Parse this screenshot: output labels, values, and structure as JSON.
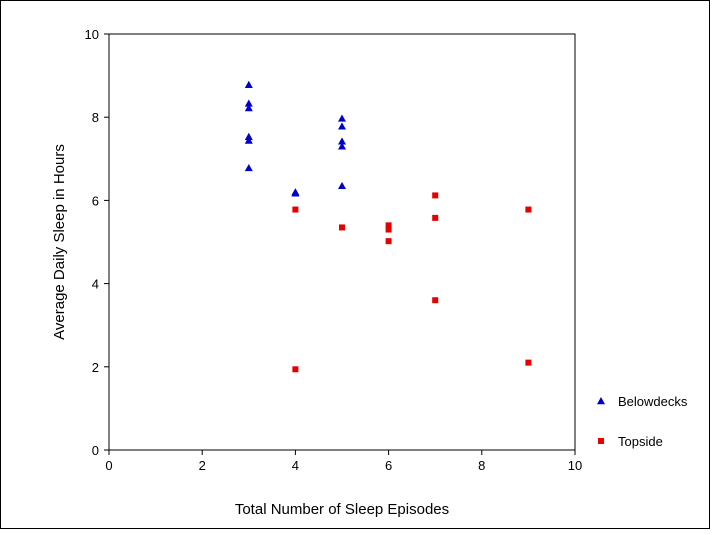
{
  "chart_data": {
    "type": "scatter",
    "title": "",
    "xlabel": "Total Number of Sleep Episodes",
    "ylabel": "Average Daily Sleep in Hours",
    "xlim": [
      0,
      10
    ],
    "ylim": [
      0,
      10
    ],
    "xticks": [
      "0",
      "2",
      "4",
      "6",
      "8",
      "10"
    ],
    "yticks": [
      "0",
      "2",
      "4",
      "6",
      "8",
      "10"
    ],
    "grid": false,
    "legend_position": "bottom-right",
    "series": [
      {
        "name": "Belowdecks",
        "marker": "triangle",
        "color": "#0000cc",
        "points": [
          [
            3,
            8.78
          ],
          [
            3,
            8.33
          ],
          [
            3,
            8.22
          ],
          [
            3,
            7.53
          ],
          [
            3,
            7.44
          ],
          [
            3,
            6.78
          ],
          [
            4,
            6.2
          ],
          [
            4,
            6.17
          ],
          [
            5,
            7.97
          ],
          [
            5,
            7.78
          ],
          [
            5,
            7.42
          ],
          [
            5,
            7.3
          ],
          [
            5,
            6.35
          ]
        ]
      },
      {
        "name": "Topside",
        "marker": "square",
        "color": "#e60000",
        "points": [
          [
            4,
            5.78
          ],
          [
            4,
            1.94
          ],
          [
            5,
            5.35
          ],
          [
            6,
            5.4
          ],
          [
            6,
            5.3
          ],
          [
            6,
            5.02
          ],
          [
            7,
            6.12
          ],
          [
            7,
            5.58
          ],
          [
            7,
            3.6
          ],
          [
            9,
            5.78
          ],
          [
            9,
            2.1
          ]
        ]
      }
    ]
  }
}
